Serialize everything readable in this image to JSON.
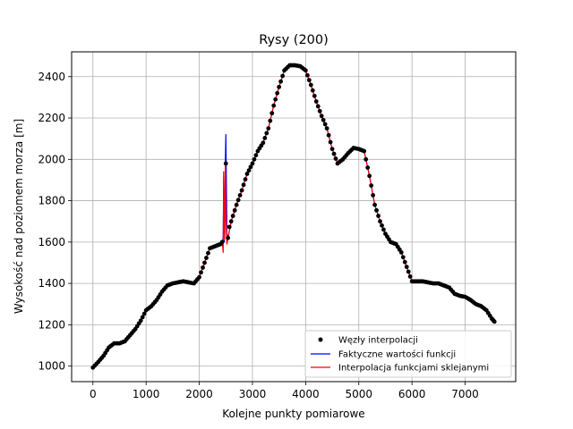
{
  "chart_data": {
    "type": "line",
    "title": "Rysy (200)",
    "xlabel": "Kolejne punkty pomiarowe",
    "ylabel": "Wysokość nad poziomem morza [m]",
    "xlim": [
      -400,
      7950
    ],
    "ylim": [
      925,
      2520
    ],
    "xticks": [
      0,
      1000,
      2000,
      3000,
      4000,
      5000,
      6000,
      7000
    ],
    "yticks": [
      1000,
      1200,
      1400,
      1600,
      1800,
      2000,
      2200,
      2400
    ],
    "grid": true,
    "legend_position": "lower-right",
    "legend": {
      "nodes": "Węzły interpolacji",
      "actual": "Faktyczne wartości funkcji",
      "spline": "Interpolacja funkcjami sklejanymi"
    },
    "colors": {
      "nodes": "#000000",
      "actual": "#0000ff",
      "spline": "#ff0000",
      "grid": "#b0b0b0"
    },
    "profile": {
      "x": [
        0,
        100,
        200,
        300,
        400,
        500,
        600,
        700,
        800,
        900,
        1000,
        1100,
        1200,
        1300,
        1400,
        1500,
        1600,
        1700,
        1800,
        1900,
        2000,
        2100,
        2200,
        2300,
        2400,
        2500,
        2600,
        2700,
        2800,
        2900,
        3000,
        3100,
        3200,
        3300,
        3400,
        3500,
        3600,
        3700,
        3800,
        3900,
        4000,
        4100,
        4200,
        4300,
        4400,
        4500,
        4600,
        4700,
        4800,
        4900,
        5000,
        5100,
        5200,
        5300,
        5400,
        5500,
        5600,
        5700,
        5800,
        5900,
        6000,
        6100,
        6200,
        6300,
        6400,
        6500,
        6600,
        6700,
        6800,
        6900,
        7000,
        7100,
        7200,
        7300,
        7400,
        7500,
        7550
      ],
      "y": [
        993,
        1020,
        1050,
        1090,
        1110,
        1110,
        1120,
        1150,
        1180,
        1220,
        1270,
        1290,
        1320,
        1360,
        1390,
        1400,
        1405,
        1410,
        1405,
        1400,
        1430,
        1500,
        1570,
        1580,
        1590,
        1620,
        1700,
        1780,
        1850,
        1930,
        1980,
        2040,
        2080,
        2150,
        2260,
        2350,
        2430,
        2455,
        2455,
        2450,
        2430,
        2360,
        2280,
        2210,
        2150,
        2050,
        1980,
        2000,
        2030,
        2055,
        2050,
        2040,
        1920,
        1780,
        1700,
        1640,
        1600,
        1590,
        1550,
        1480,
        1410,
        1410,
        1410,
        1405,
        1400,
        1400,
        1390,
        1380,
        1350,
        1340,
        1335,
        1320,
        1300,
        1290,
        1270,
        1230,
        1215
      ]
    },
    "spike": {
      "x": [
        2430,
        2450,
        2460,
        2470,
        2480,
        2490,
        2500,
        2520,
        2540
      ],
      "actual_y": [
        1600,
        1620,
        1940,
        1600,
        1640,
        1980,
        2120,
        1640,
        1620
      ],
      "spline_y": [
        1600,
        1550,
        1940,
        1610,
        1660,
        1980,
        1740,
        1590,
        1620
      ]
    }
  }
}
